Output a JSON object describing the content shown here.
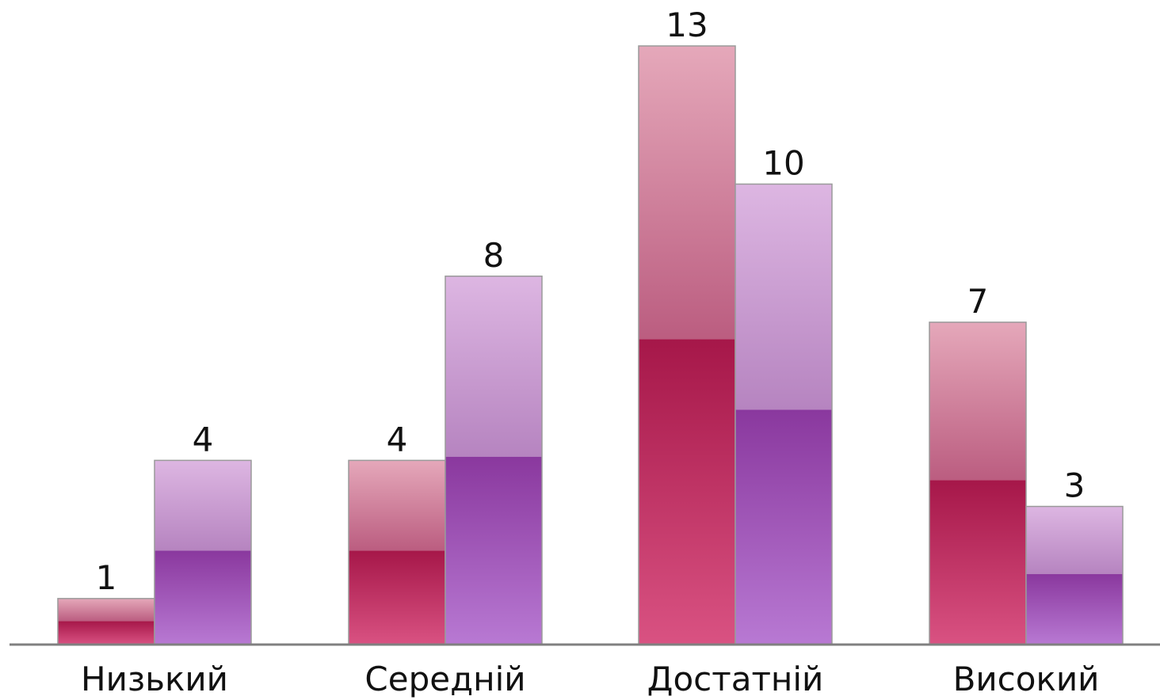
{
  "chart_data": {
    "type": "bar",
    "categories": [
      "Низький",
      "Середній",
      "Достатній",
      "Високий"
    ],
    "series": [
      {
        "values": [
          1,
          4,
          13,
          7
        ]
      },
      {
        "values": [
          4,
          8,
          10,
          3
        ]
      }
    ],
    "ylim": [
      0,
      14
    ],
    "grid": false,
    "legend": "none",
    "colors": {
      "series1_top": "#e5a8ba",
      "series1_mid": "#bb5d80",
      "series1_bottom_dark": "#a61749",
      "series1_bottom_light": "#d95282",
      "series2_top": "#ddb6e2",
      "series2_mid": "#b684c0",
      "series2_bottom_dark": "#8a389e",
      "series2_bottom_light": "#b879d3",
      "axis": "#808080"
    }
  }
}
